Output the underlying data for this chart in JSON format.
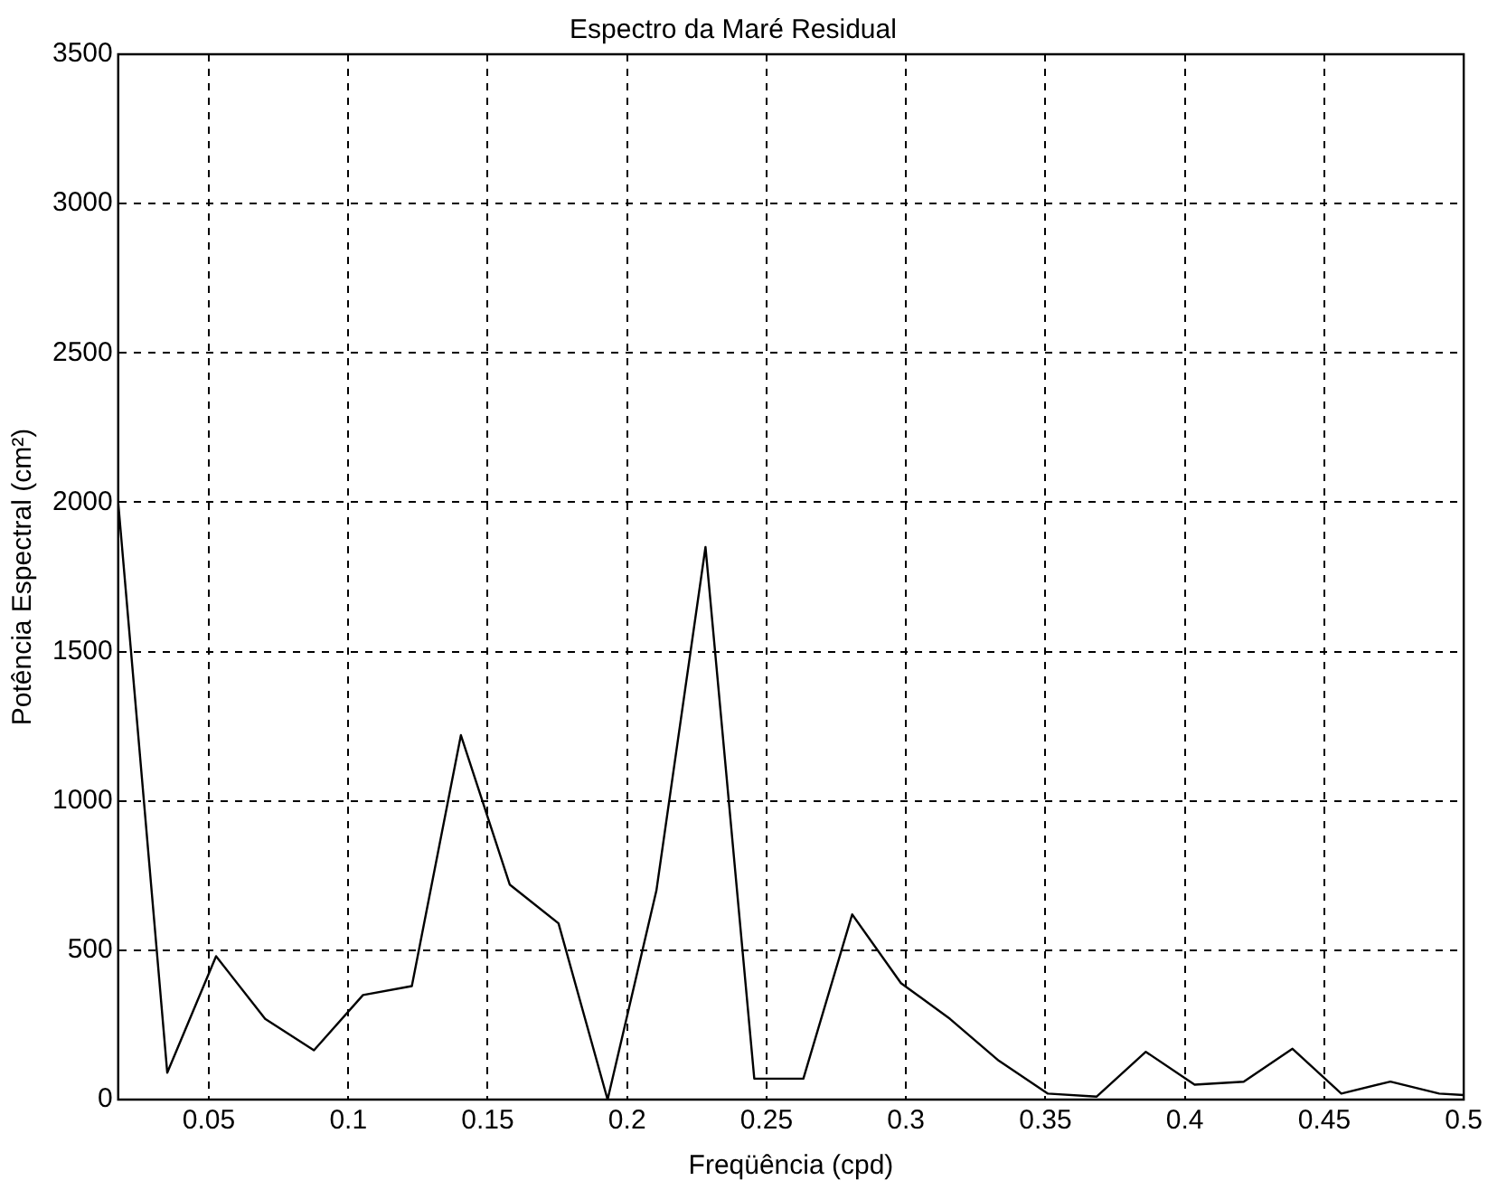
{
  "chart_data": {
    "type": "line",
    "title": "Espectro da Maré Residual",
    "xlabel": "Freqüência (cpd)",
    "ylabel": "Potência Espectral (cm²)",
    "x": [
      0.0175,
      0.0351,
      0.0526,
      0.0702,
      0.0877,
      0.1053,
      0.1228,
      0.1404,
      0.1579,
      0.1754,
      0.193,
      0.2105,
      0.2281,
      0.2456,
      0.2632,
      0.2807,
      0.2982,
      0.3158,
      0.3333,
      0.3509,
      0.3684,
      0.386,
      0.4035,
      0.4211,
      0.4386,
      0.4561,
      0.4737,
      0.4912,
      0.5
    ],
    "series": [
      {
        "color": "#000000",
        "values": [
          2000,
          90,
          480,
          270,
          165,
          350,
          380,
          1220,
          720,
          590,
          0,
          700,
          1850,
          70,
          70,
          620,
          390,
          270,
          130,
          20,
          10,
          160,
          50,
          60,
          170,
          20,
          60,
          20,
          15
        ]
      }
    ],
    "xlim": [
      0.0175,
      0.5
    ],
    "xticks": [
      0.05,
      0.1,
      0.15,
      0.2,
      0.25,
      0.3,
      0.35,
      0.4,
      0.45,
      0.5
    ],
    "ylim": [
      0,
      3500
    ],
    "yticks": [
      0,
      500,
      1000,
      1500,
      2000,
      2500,
      3000,
      3500
    ],
    "grid": true,
    "legend": false,
    "marker": "none",
    "line_style": "solid"
  }
}
